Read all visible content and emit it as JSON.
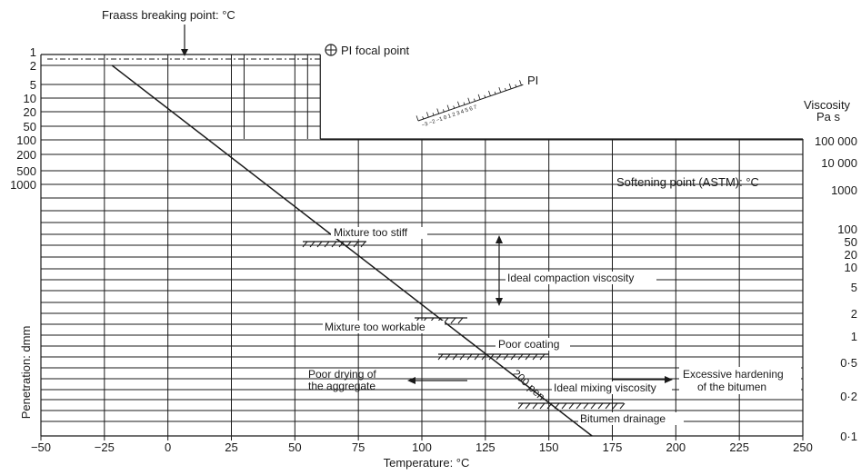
{
  "chart_data": {
    "type": "line",
    "title": "",
    "xlabel": "Temperature: °C",
    "ylabel_left": "Penetration: dmm",
    "ylabel_right_line1": "Viscosity",
    "ylabel_right_line2": "Pa s",
    "x_ticks": [
      "−50",
      "−25",
      "0",
      "25",
      "50",
      "75",
      "100",
      "125",
      "150",
      "175",
      "200",
      "225",
      "250"
    ],
    "xlim": [
      -50,
      250
    ],
    "penetration_ticks": [
      "1",
      "2",
      "5",
      "10",
      "20",
      "50",
      "100",
      "200",
      "500",
      "1000"
    ],
    "viscosity_ticks": [
      "100 000",
      "10 000",
      "1000",
      "100",
      "50",
      "20",
      "10",
      "5",
      "2",
      "1",
      "0·5",
      "0·2",
      "0·1"
    ],
    "grid": true,
    "series": [
      {
        "name": "200 pen",
        "x": [
          -22,
          167
        ],
        "y_label": "penetration / viscosity",
        "color": "#1a1a1a"
      }
    ],
    "annotations": {
      "fraass": "Fraass breaking point: °C",
      "pi_focal": "PI focal point",
      "pi": "PI",
      "pi_scale": "−3  −2  −1  0  1  2  3  4  5  6  7",
      "softening": "Softening point (ASTM): °C",
      "too_stiff": "Mixture too stiff",
      "ideal_compaction": "Ideal compaction viscosity",
      "too_workable": "Mixture too workable",
      "poor_coating": "Poor coating",
      "poor_drying_1": "Poor drying of",
      "poor_drying_2": "the aggregate",
      "ideal_mixing": "Ideal mixing viscosity",
      "hardening_1": "Excessive hardening",
      "hardening_2": "of the bitumen",
      "drainage": "Bitumen drainage",
      "pen_label": "200 pen"
    },
    "line_color": "#1a1a1a"
  }
}
